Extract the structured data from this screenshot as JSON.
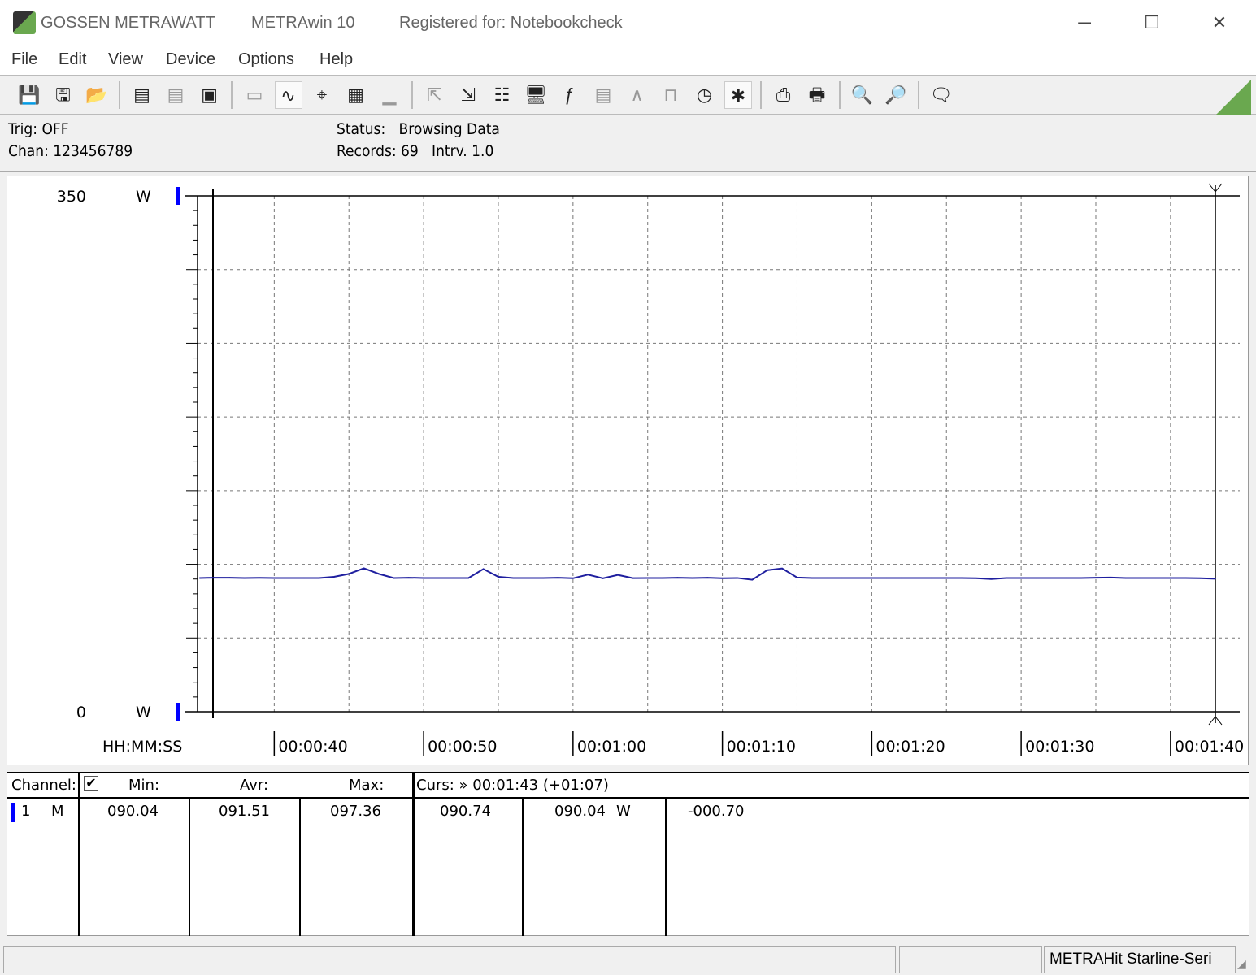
{
  "window": {
    "brand": "GOSSEN METRAWATT",
    "app": "METRAwin 10",
    "registered": "Registered for: Notebookcheck",
    "controls": {
      "minimize": "─",
      "maximize": "☐",
      "close": "✕"
    }
  },
  "menu": [
    "File",
    "Edit",
    "View",
    "Device",
    "Options",
    "Help"
  ],
  "toolbar": {
    "groups": [
      [
        {
          "icon": "save-icon",
          "glyph": "💾"
        },
        {
          "icon": "save-as-icon",
          "glyph": "🖫"
        },
        {
          "icon": "open-folder-icon",
          "glyph": "📂"
        }
      ],
      [
        {
          "icon": "device-read-icon",
          "glyph": "▤"
        },
        {
          "icon": "device-disconnect-icon",
          "glyph": "▤",
          "disabled": true
        },
        {
          "icon": "device-memory-icon",
          "glyph": "▣"
        }
      ],
      [
        {
          "icon": "numeric-display-icon",
          "glyph": "▭",
          "disabled": true
        },
        {
          "icon": "waveform-view-icon",
          "glyph": "∿",
          "active": true
        },
        {
          "icon": "crosshair-icon",
          "glyph": "⌖"
        },
        {
          "icon": "table-view-icon",
          "glyph": "▦"
        },
        {
          "icon": "histogram-icon",
          "glyph": "▁",
          "disabled": true
        }
      ],
      [
        {
          "icon": "export-icon",
          "glyph": "⇱",
          "disabled": true
        },
        {
          "icon": "import-icon",
          "glyph": "⇲"
        },
        {
          "icon": "channel-config-icon",
          "glyph": "☷"
        },
        {
          "icon": "monitor-icon",
          "glyph": "🖥"
        },
        {
          "icon": "function-icon",
          "glyph": "ƒ"
        },
        {
          "icon": "device-settings-icon",
          "glyph": "▤",
          "disabled": true
        },
        {
          "icon": "signal-icon",
          "glyph": "∧",
          "disabled": true
        },
        {
          "icon": "sampling-icon",
          "glyph": "⊓",
          "disabled": true
        },
        {
          "icon": "clock-icon",
          "glyph": "◷"
        },
        {
          "icon": "trigger-icon",
          "glyph": "✱",
          "active": true
        }
      ],
      [
        {
          "icon": "print-chart-icon",
          "glyph": "⎙"
        },
        {
          "icon": "print-icon",
          "glyph": "🖶"
        }
      ],
      [
        {
          "icon": "zoom-all-icon",
          "glyph": "🔍"
        },
        {
          "icon": "zoom-peak-icon",
          "glyph": "🔎"
        }
      ],
      [
        {
          "icon": "info-icon",
          "glyph": "🗨"
        }
      ]
    ],
    "accent": "#6aa84f"
  },
  "info": {
    "trig": "Trig: OFF",
    "chan": "Chan:  123456789",
    "status": "Status:   Browsing Data",
    "records": "Records: 69   Intrv. 1.0"
  },
  "chart_data": {
    "type": "line",
    "y_top_label": "350",
    "y_bottom_label": "0",
    "y_unit": "W",
    "xlabel": "HH:MM:SS",
    "ylim": [
      0,
      350
    ],
    "xlim": [
      35.9,
      103
    ],
    "x_ticks": [
      40,
      50,
      60,
      70,
      80,
      90,
      100
    ],
    "x_tick_labels": [
      "00:00:40",
      "00:00:50",
      "00:01:00",
      "00:01:10",
      "00:01:20",
      "00:01:30",
      "00:01:40"
    ],
    "grid": true,
    "cursor_time": 103,
    "line_color": "#1f1f9f",
    "channel_color": "#0000ff",
    "series": [
      {
        "x": [
          35,
          36,
          37,
          38,
          39,
          40,
          41,
          42,
          43,
          44,
          45,
          46,
          47,
          48,
          49,
          50,
          51,
          52,
          53,
          54,
          55,
          56,
          57,
          58,
          59,
          60,
          61,
          62,
          63,
          64,
          65,
          66,
          67,
          68,
          69,
          70,
          71,
          72,
          73,
          74,
          75,
          76,
          77,
          78,
          79,
          80,
          81,
          82,
          83,
          84,
          85,
          86,
          87,
          88,
          89,
          90,
          91,
          92,
          93,
          94,
          95,
          96,
          97,
          98,
          99,
          100,
          101,
          102,
          103
        ],
        "values": [
          90.7,
          90.9,
          90.9,
          90.7,
          90.8,
          90.7,
          90.7,
          90.7,
          90.7,
          91.5,
          93.5,
          97.3,
          93.5,
          90.7,
          90.9,
          90.7,
          90.7,
          90.7,
          90.7,
          96.8,
          91.5,
          90.7,
          90.7,
          90.7,
          90.9,
          90.5,
          93.0,
          90.5,
          92.8,
          90.6,
          90.7,
          90.7,
          90.9,
          90.7,
          90.9,
          90.5,
          90.7,
          89.5,
          96.0,
          97.2,
          91.0,
          90.7,
          90.7,
          90.7,
          90.7,
          90.7,
          90.7,
          90.7,
          90.7,
          90.7,
          90.7,
          90.7,
          90.5,
          90.0,
          90.7,
          90.7,
          90.7,
          90.7,
          90.7,
          90.7,
          90.9,
          91.0,
          90.7,
          90.7,
          90.7,
          90.7,
          90.7,
          90.5,
          90.2
        ]
      }
    ]
  },
  "table": {
    "headers": {
      "channel": "Channel:",
      "min": "Min:",
      "avr": "Avr:",
      "max": "Max:",
      "cursor": "Curs: » 00:01:43 (+01:07)"
    },
    "checkbox_checked": true,
    "row": {
      "num": "1",
      "mode": "M",
      "min": "090.04",
      "avr": "091.51",
      "max": "097.36",
      "c1": "090.74",
      "c2": "090.04",
      "unit": "W",
      "diff": "-000.70"
    }
  },
  "statusbar": {
    "device": "METRAHit Starline-Seri"
  }
}
